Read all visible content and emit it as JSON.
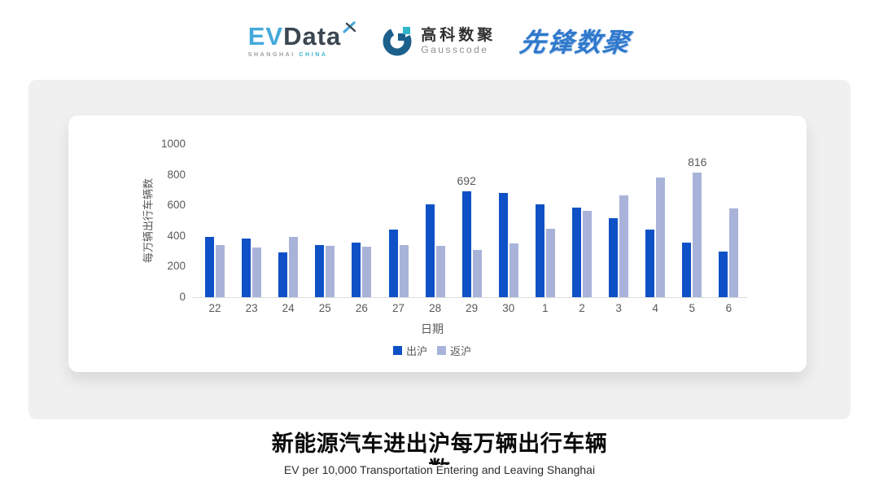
{
  "logos": {
    "evdata": {
      "part1": "EV",
      "part2": "Data",
      "tagline_left": "SHANGHAI",
      "tagline_right": "CHINA"
    },
    "gausscode": {
      "name_cn": "高科数聚",
      "name_en": "Gausscode"
    },
    "xianfeng": {
      "name": "先锋数聚"
    }
  },
  "colors": {
    "series_out": "#0E51C6",
    "series_back": "#A9B3D9",
    "axis_text": "#595959",
    "card_bg": "#F0F0F1"
  },
  "chart_data": {
    "type": "bar",
    "title": "新能源汽车进出沪每万辆出行车辆数",
    "categories": [
      "22",
      "23",
      "24",
      "25",
      "26",
      "27",
      "28",
      "29",
      "30",
      "1",
      "2",
      "3",
      "4",
      "5",
      "6"
    ],
    "series": [
      {
        "name": "出沪",
        "color": "#0E51C6",
        "values": [
          392,
          381,
          293,
          343,
          357,
          444,
          606,
          692,
          681,
          608,
          585,
          514,
          440,
          355,
          297
        ]
      },
      {
        "name": "返沪",
        "color": "#A9B3D9",
        "values": [
          342,
          322,
          396,
          333,
          328,
          341,
          333,
          307,
          349,
          447,
          565,
          665,
          783,
          816,
          581
        ]
      }
    ],
    "xlabel": "日期",
    "ylabel": "每万辆出行车辆数",
    "ylim": [
      0,
      1000
    ],
    "y_ticks": [
      0,
      200,
      400,
      600,
      800,
      1000
    ],
    "grid": false,
    "legend_position": "bottom",
    "annotations": [
      {
        "series": "出沪",
        "category": "29",
        "value": 692
      },
      {
        "series": "返沪",
        "category": "5",
        "value": 816
      }
    ]
  },
  "footer": {
    "title": "新能源汽车进出沪每万辆出行车辆数",
    "subtitle": "EV per 10,000 Transportation Entering and Leaving Shanghai"
  }
}
